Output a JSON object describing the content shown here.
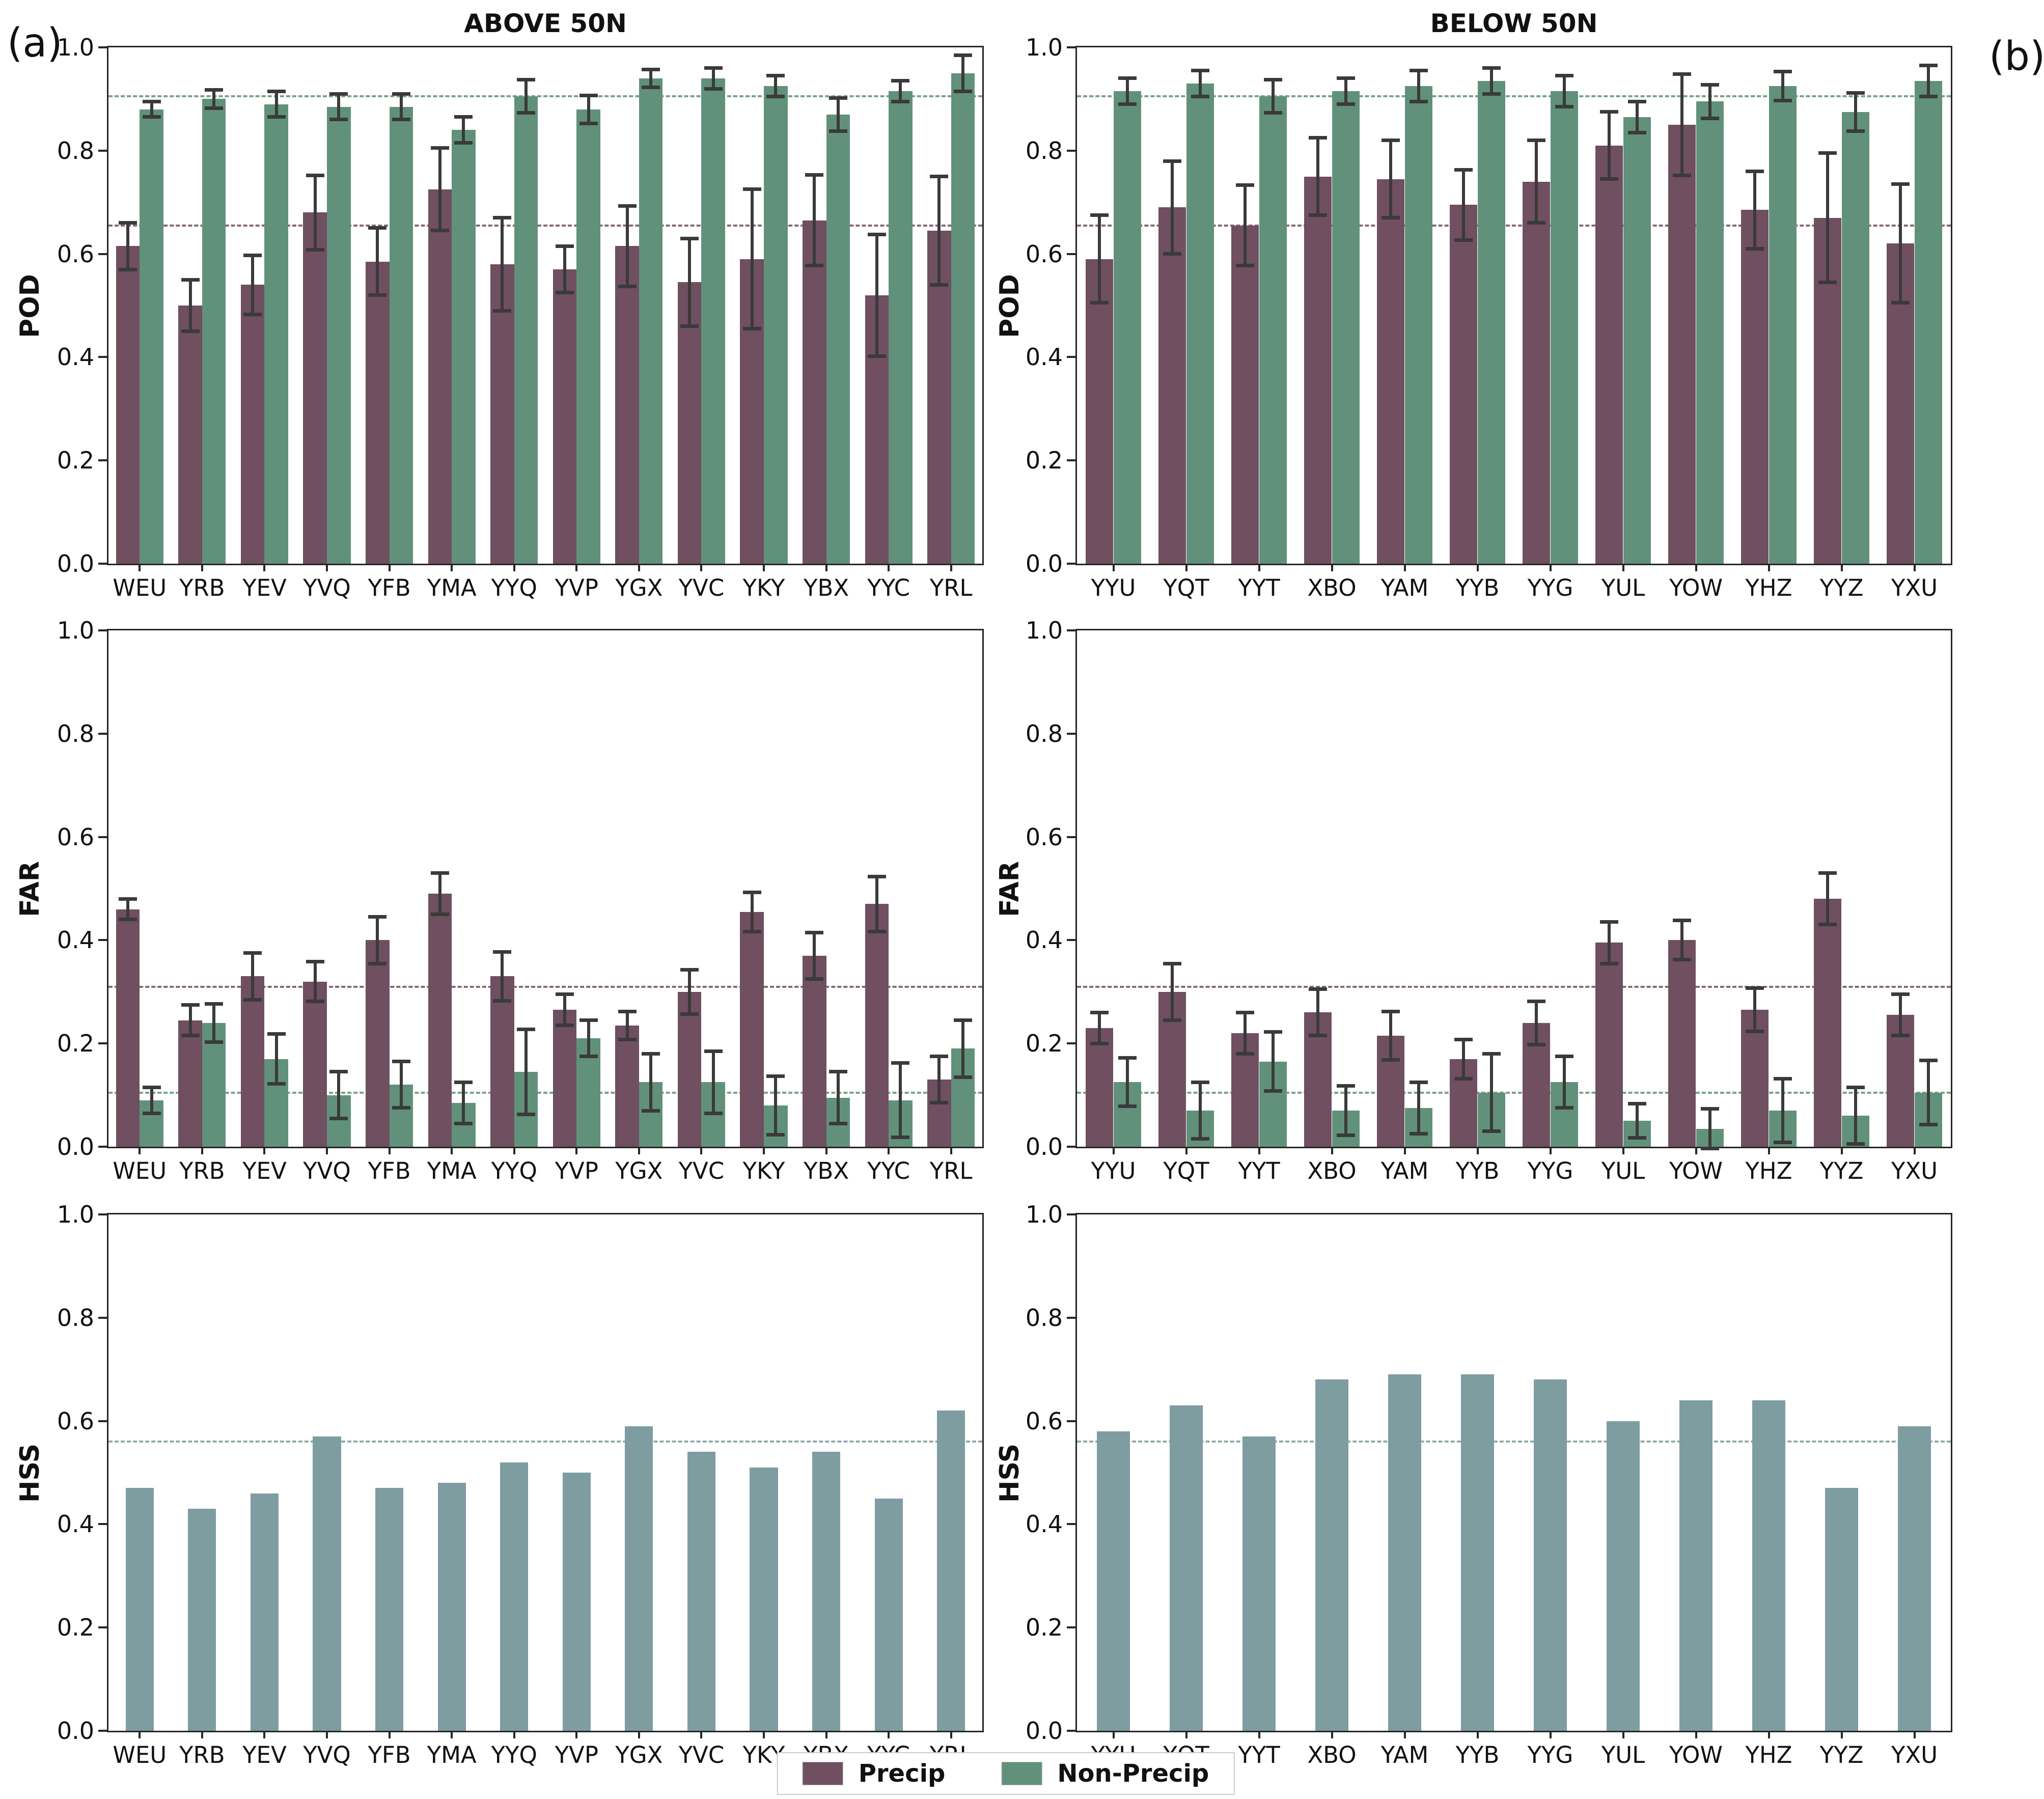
{
  "figure": {
    "panel_label_a": "(a)",
    "panel_label_b": "(b)",
    "titles": {
      "left": "ABOVE 50N",
      "right": "BELOW 50N"
    },
    "colors": {
      "precip": "#6F4F60",
      "non_precip": "#61917A",
      "hss": "#7E9DA1",
      "error_bar": "#3A3A3A",
      "spine": "#262626"
    },
    "legend": {
      "items": [
        {
          "label": "Precip",
          "color_key": "precip"
        },
        {
          "label": "Non-Precip",
          "color_key": "non_precip"
        }
      ]
    }
  },
  "chart_data": [
    {
      "id": "pod-above-50n",
      "type": "bar",
      "title": "ABOVE 50N",
      "ylabel": "POD",
      "ylim": [
        0.0,
        1.0
      ],
      "ytick_labels": [
        "0.0",
        "0.2",
        "0.4",
        "0.6",
        "0.8",
        "1.0"
      ],
      "grid": false,
      "legend_position": "figure-bottom",
      "categories": [
        "WEU",
        "YRB",
        "YEV",
        "YVQ",
        "YFB",
        "YMA",
        "YYQ",
        "YVP",
        "YGX",
        "YVC",
        "YKY",
        "YBX",
        "YYC",
        "YRL"
      ],
      "series": [
        {
          "name": "Precip",
          "color_key": "precip",
          "values": [
            0.615,
            0.5,
            0.54,
            0.68,
            0.585,
            0.725,
            0.58,
            0.57,
            0.615,
            0.545,
            0.59,
            0.665,
            0.52,
            0.645
          ],
          "errors": [
            0.045,
            0.05,
            0.057,
            0.072,
            0.065,
            0.08,
            0.09,
            0.045,
            0.078,
            0.085,
            0.135,
            0.088,
            0.118,
            0.105
          ]
        },
        {
          "name": "Non-Precip",
          "color_key": "non_precip",
          "values": [
            0.88,
            0.9,
            0.89,
            0.885,
            0.885,
            0.84,
            0.905,
            0.88,
            0.94,
            0.94,
            0.925,
            0.87,
            0.915,
            0.95
          ],
          "errors": [
            0.015,
            0.018,
            0.025,
            0.025,
            0.025,
            0.025,
            0.032,
            0.027,
            0.017,
            0.02,
            0.02,
            0.032,
            0.02,
            0.035
          ]
        }
      ],
      "reference_lines": [
        {
          "value": 0.655,
          "color_key": "precip"
        },
        {
          "value": 0.905,
          "color_key": "non_precip"
        }
      ]
    },
    {
      "id": "pod-below-50n",
      "type": "bar",
      "title": "BELOW 50N",
      "ylabel": "POD",
      "ylim": [
        0.0,
        1.0
      ],
      "ytick_labels": [
        "0.0",
        "0.2",
        "0.4",
        "0.6",
        "0.8",
        "1.0"
      ],
      "grid": false,
      "categories": [
        "YYU",
        "YQT",
        "YYT",
        "XBO",
        "YAM",
        "YYB",
        "YYG",
        "YUL",
        "YOW",
        "YHZ",
        "YYZ",
        "YXU"
      ],
      "series": [
        {
          "name": "Precip",
          "color_key": "precip",
          "values": [
            0.59,
            0.69,
            0.655,
            0.75,
            0.745,
            0.695,
            0.74,
            0.81,
            0.85,
            0.685,
            0.67,
            0.62
          ],
          "errors": [
            0.085,
            0.09,
            0.078,
            0.075,
            0.075,
            0.068,
            0.08,
            0.065,
            0.098,
            0.075,
            0.125,
            0.115
          ]
        },
        {
          "name": "Non-Precip",
          "color_key": "non_precip",
          "values": [
            0.915,
            0.93,
            0.905,
            0.915,
            0.925,
            0.935,
            0.915,
            0.865,
            0.895,
            0.925,
            0.875,
            0.935
          ],
          "errors": [
            0.025,
            0.025,
            0.032,
            0.025,
            0.03,
            0.025,
            0.03,
            0.03,
            0.033,
            0.028,
            0.037,
            0.03
          ]
        }
      ],
      "reference_lines": [
        {
          "value": 0.655,
          "color_key": "precip"
        },
        {
          "value": 0.905,
          "color_key": "non_precip"
        }
      ]
    },
    {
      "id": "far-above-50n",
      "type": "bar",
      "title": "",
      "ylabel": "FAR",
      "ylim": [
        0.0,
        1.0
      ],
      "ytick_labels": [
        "0.0",
        "0.2",
        "0.4",
        "0.6",
        "0.8",
        "1.0"
      ],
      "grid": false,
      "categories": [
        "WEU",
        "YRB",
        "YEV",
        "YVQ",
        "YFB",
        "YMA",
        "YYQ",
        "YVP",
        "YGX",
        "YVC",
        "YKY",
        "YBX",
        "YYC",
        "YRL"
      ],
      "series": [
        {
          "name": "Precip",
          "color_key": "precip",
          "values": [
            0.46,
            0.245,
            0.33,
            0.32,
            0.4,
            0.49,
            0.33,
            0.265,
            0.235,
            0.3,
            0.455,
            0.37,
            0.47,
            0.13
          ],
          "errors": [
            0.02,
            0.03,
            0.045,
            0.038,
            0.045,
            0.04,
            0.047,
            0.03,
            0.027,
            0.043,
            0.038,
            0.045,
            0.053,
            0.045
          ]
        },
        {
          "name": "Non-Precip",
          "color_key": "non_precip",
          "values": [
            0.09,
            0.24,
            0.17,
            0.1,
            0.12,
            0.085,
            0.145,
            0.21,
            0.125,
            0.125,
            0.08,
            0.095,
            0.09,
            0.19
          ],
          "errors": [
            0.025,
            0.037,
            0.048,
            0.045,
            0.045,
            0.04,
            0.082,
            0.035,
            0.055,
            0.06,
            0.057,
            0.05,
            0.072,
            0.055
          ]
        }
      ],
      "reference_lines": [
        {
          "value": 0.31,
          "color_key": "precip"
        },
        {
          "value": 0.105,
          "color_key": "non_precip"
        }
      ]
    },
    {
      "id": "far-below-50n",
      "type": "bar",
      "title": "",
      "ylabel": "FAR",
      "ylim": [
        0.0,
        1.0
      ],
      "ytick_labels": [
        "0.0",
        "0.2",
        "0.4",
        "0.6",
        "0.8",
        "1.0"
      ],
      "grid": false,
      "categories": [
        "YYU",
        "YQT",
        "YYT",
        "XBO",
        "YAM",
        "YYB",
        "YYG",
        "YUL",
        "YOW",
        "YHZ",
        "YYZ",
        "YXU"
      ],
      "series": [
        {
          "name": "Precip",
          "color_key": "precip",
          "values": [
            0.23,
            0.3,
            0.22,
            0.26,
            0.215,
            0.17,
            0.24,
            0.395,
            0.4,
            0.265,
            0.48,
            0.255
          ],
          "errors": [
            0.03,
            0.055,
            0.04,
            0.045,
            0.047,
            0.038,
            0.042,
            0.04,
            0.038,
            0.042,
            0.05,
            0.04
          ]
        },
        {
          "name": "Non-Precip",
          "color_key": "non_precip",
          "values": [
            0.125,
            0.07,
            0.165,
            0.07,
            0.075,
            0.105,
            0.125,
            0.05,
            0.035,
            0.07,
            0.06,
            0.105
          ],
          "errors": [
            0.047,
            0.055,
            0.057,
            0.048,
            0.05,
            0.075,
            0.05,
            0.033,
            0.038,
            0.062,
            0.055,
            0.062
          ]
        }
      ],
      "reference_lines": [
        {
          "value": 0.31,
          "color_key": "precip"
        },
        {
          "value": 0.105,
          "color_key": "non_precip"
        }
      ]
    },
    {
      "id": "hss-above-50n",
      "type": "bar",
      "title": "",
      "ylabel": "HSS",
      "ylim": [
        0.0,
        1.0
      ],
      "ytick_labels": [
        "0.0",
        "0.2",
        "0.4",
        "0.6",
        "0.8",
        "1.0"
      ],
      "grid": false,
      "categories": [
        "WEU",
        "YRB",
        "YEV",
        "YVQ",
        "YFB",
        "YMA",
        "YYQ",
        "YVP",
        "YGX",
        "YVC",
        "YKY",
        "YBX",
        "YYC",
        "YRL"
      ],
      "series": [
        {
          "name": "HSS",
          "color_key": "hss",
          "values": [
            0.47,
            0.43,
            0.46,
            0.57,
            0.47,
            0.48,
            0.52,
            0.5,
            0.59,
            0.54,
            0.51,
            0.54,
            0.45,
            0.62
          ],
          "errors": null
        }
      ],
      "reference_lines": [
        {
          "value": 0.56,
          "color_key": "hss"
        }
      ]
    },
    {
      "id": "hss-below-50n",
      "type": "bar",
      "title": "",
      "ylabel": "HSS",
      "ylim": [
        0.0,
        1.0
      ],
      "ytick_labels": [
        "0.0",
        "0.2",
        "0.4",
        "0.6",
        "0.8",
        "1.0"
      ],
      "grid": false,
      "categories": [
        "YYU",
        "YQT",
        "YYT",
        "XBO",
        "YAM",
        "YYB",
        "YYG",
        "YUL",
        "YOW",
        "YHZ",
        "YYZ",
        "YXU"
      ],
      "series": [
        {
          "name": "HSS",
          "color_key": "hss",
          "values": [
            0.58,
            0.63,
            0.57,
            0.68,
            0.69,
            0.69,
            0.68,
            0.6,
            0.64,
            0.64,
            0.47,
            0.59
          ],
          "errors": null
        }
      ],
      "reference_lines": [
        {
          "value": 0.56,
          "color_key": "hss"
        }
      ]
    }
  ]
}
